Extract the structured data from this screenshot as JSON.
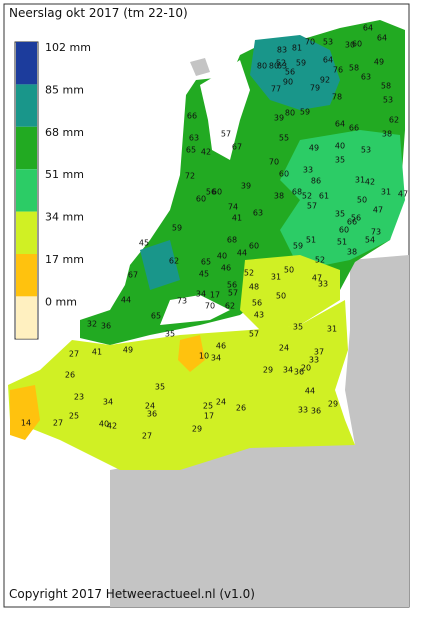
{
  "title": "Neerslag okt 2017 (tm 22-10)",
  "legend": [
    {
      "label": "102 mm",
      "color": "#1c3c9c"
    },
    {
      "label": "85 mm",
      "color": "#19968a"
    },
    {
      "label": "68 mm",
      "color": "#22aa22"
    },
    {
      "label": "51 mm",
      "color": "#2ccc66"
    },
    {
      "label": "34 mm",
      "color": "#d0f024"
    },
    {
      "label": "17 mm",
      "color": "#ffc20e"
    },
    {
      "label": "0 mm",
      "color": "#fff0c0"
    }
  ],
  "stations": [
    64,
    64,
    70,
    53,
    30,
    60,
    81,
    83,
    52,
    59,
    64,
    49,
    80,
    80,
    63,
    56,
    76,
    58,
    63,
    90,
    79,
    92,
    77,
    58,
    78,
    53,
    59,
    80,
    39,
    62,
    64,
    66,
    38,
    55,
    40,
    53,
    49,
    70,
    35,
    33,
    60,
    31,
    42,
    86,
    47,
    31,
    68,
    38,
    52,
    57,
    61,
    39,
    72,
    66,
    63,
    57,
    67,
    65,
    42,
    60,
    74,
    63,
    41,
    56,
    60,
    59,
    66,
    50,
    47,
    35,
    56,
    60,
    73,
    51,
    38,
    54,
    51,
    59,
    52,
    47,
    50,
    48,
    52,
    44,
    60,
    68,
    40,
    65,
    45,
    46,
    33,
    34,
    17,
    57,
    56,
    62,
    70,
    62,
    67,
    44,
    65,
    73,
    36,
    32,
    35,
    41,
    27,
    49,
    50,
    56,
    43,
    57,
    35,
    31,
    24,
    20,
    10,
    34,
    46,
    29,
    34,
    36,
    37,
    33,
    26,
    35,
    23,
    34,
    25,
    24,
    25,
    24,
    26,
    17,
    36,
    14,
    27,
    40,
    42,
    27,
    29,
    44,
    29,
    33,
    36,
    31,
    45
  ],
  "copyright": "Copyright 2017 Hetweeractueel.nl (v1.0)"
}
